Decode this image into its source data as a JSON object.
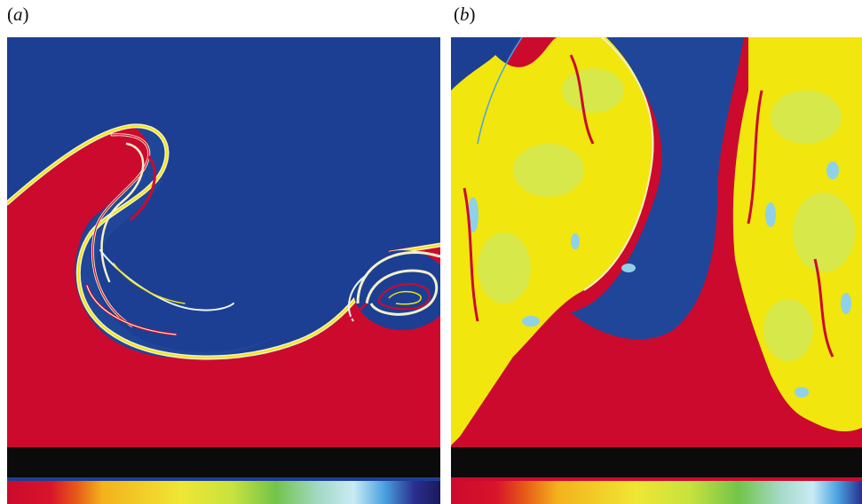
{
  "figure": {
    "panels": [
      {
        "label_open": "(",
        "label_letter": "a",
        "label_close": ")"
      },
      {
        "label_open": "(",
        "label_letter": "b",
        "label_close": ")"
      }
    ]
  },
  "colors": {
    "upper_fluid": "#1c3f94",
    "lower_fluid": "#cc0a2e",
    "interface_light": "#f3f0c8",
    "mixed_yellow": "#f1e60e",
    "mixed_yellow_green": "#d7e84a",
    "mixed_cyan": "#8fd1e8",
    "colorbar_band": "#0b0b0b"
  },
  "colorbar": {
    "stops": [
      "#cc0a2e",
      "#e2231a",
      "#f07a16",
      "#f5c21c",
      "#f0e634",
      "#bfe040",
      "#6cc24a",
      "#9ed6c8",
      "#bfe7f3",
      "#4aa3e0",
      "#2a2f8f",
      "#1a1a5a"
    ]
  }
}
